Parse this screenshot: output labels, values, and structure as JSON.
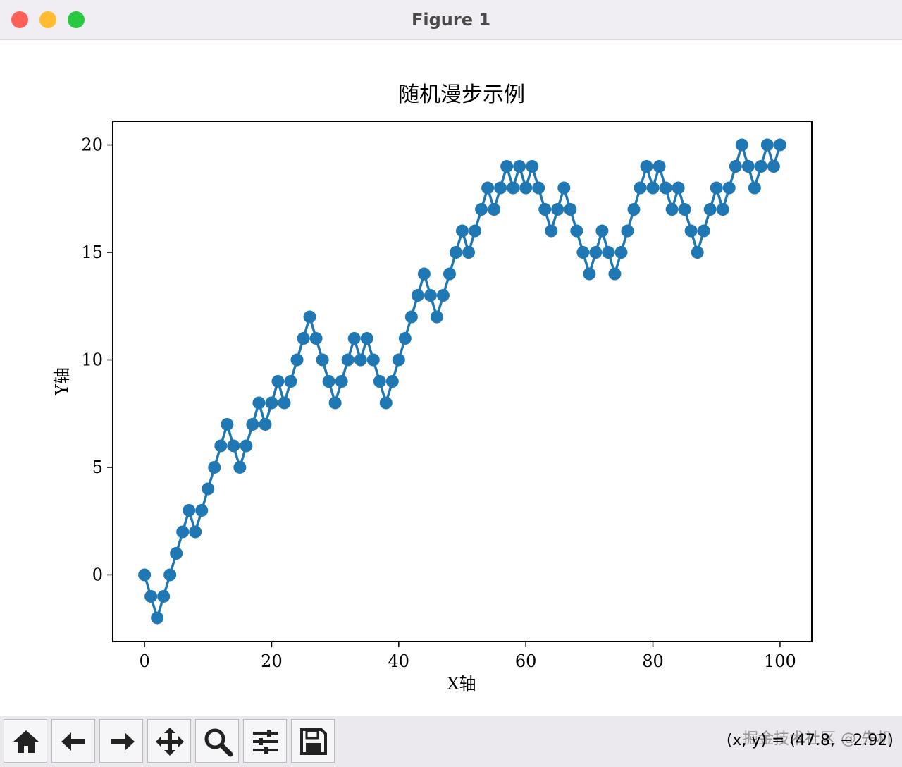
{
  "window": {
    "title": "Figure 1"
  },
  "toolbar": {
    "coordinates": "(x, y) = (47.8, −2.92)",
    "watermark": "掘金技术社区 @ 先机"
  },
  "chart_data": {
    "type": "line",
    "title": "随机漫步示例",
    "xlabel": "X轴",
    "ylabel": "Y轴",
    "x": [
      0,
      1,
      2,
      3,
      4,
      5,
      6,
      7,
      8,
      9,
      10,
      11,
      12,
      13,
      14,
      15,
      16,
      17,
      18,
      19,
      20,
      21,
      22,
      23,
      24,
      25,
      26,
      27,
      28,
      29,
      30,
      31,
      32,
      33,
      34,
      35,
      36,
      37,
      38,
      39,
      40,
      41,
      42,
      43,
      44,
      45,
      46,
      47,
      48,
      49,
      50,
      51,
      52,
      53,
      54,
      55,
      56,
      57,
      58,
      59,
      60,
      61,
      62,
      63,
      64,
      65,
      66,
      67,
      68,
      69,
      70,
      71,
      72,
      73,
      74,
      75,
      76,
      77,
      78,
      79,
      80,
      81,
      82,
      83,
      84,
      85,
      86,
      87,
      88,
      89,
      90,
      91,
      92,
      93,
      94,
      95,
      96,
      97,
      98,
      99,
      100
    ],
    "values": [
      0,
      -1,
      -2,
      -1,
      0,
      1,
      2,
      3,
      2,
      3,
      4,
      5,
      6,
      7,
      6,
      5,
      6,
      7,
      8,
      7,
      8,
      9,
      8,
      9,
      10,
      11,
      12,
      11,
      10,
      9,
      8,
      9,
      10,
      11,
      10,
      11,
      10,
      9,
      8,
      9,
      10,
      11,
      12,
      13,
      14,
      13,
      12,
      13,
      14,
      15,
      16,
      15,
      16,
      17,
      18,
      17,
      18,
      19,
      18,
      19,
      18,
      19,
      18,
      17,
      16,
      17,
      18,
      17,
      16,
      15,
      14,
      15,
      16,
      15,
      14,
      15,
      16,
      17,
      18,
      19,
      18,
      19,
      18,
      17,
      18,
      17,
      16,
      15,
      16,
      17,
      18,
      17,
      18,
      19,
      20,
      19,
      18,
      19,
      20,
      19,
      20
    ],
    "color": "#1f77b4",
    "marker": true,
    "xlim": [
      -5,
      105
    ],
    "ylim": [
      -3.1,
      21.1
    ],
    "xticks": [
      0,
      20,
      40,
      60,
      80,
      100
    ],
    "yticks": [
      0,
      5,
      10,
      15,
      20
    ],
    "grid": false
  }
}
